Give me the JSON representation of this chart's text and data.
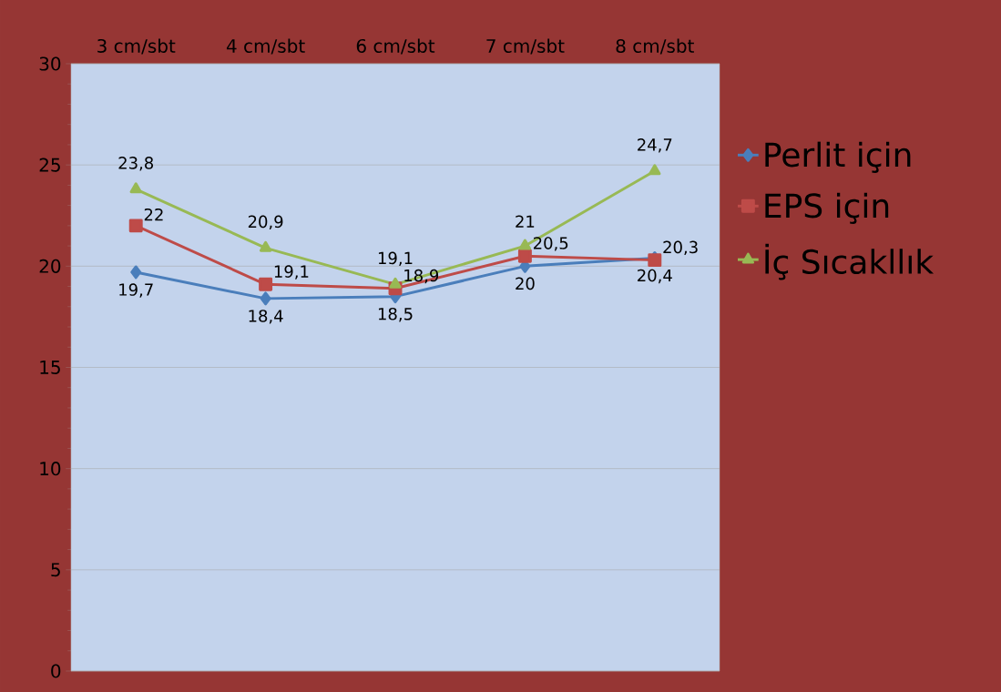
{
  "chart_data": {
    "type": "line",
    "categories": [
      "3 cm/sbt",
      "4 cm/sbt",
      "6 cm/sbt",
      "7 cm/sbt",
      "8 cm/sbt"
    ],
    "series": [
      {
        "name": "Perlit için",
        "color": "#4a7ebb",
        "marker": "diamond",
        "values": [
          19.7,
          18.4,
          18.5,
          20,
          20.4
        ],
        "value_labels": [
          "19,7",
          "18,4",
          "18,5",
          "20",
          "20,4"
        ]
      },
      {
        "name": "EPS için",
        "color": "#be4b48",
        "marker": "square",
        "values": [
          22,
          19.1,
          18.9,
          20.5,
          20.3
        ],
        "value_labels": [
          "22",
          "19,1",
          "18,9",
          "20,5",
          "20,3"
        ]
      },
      {
        "name": "İç Sıcakllık",
        "color": "#98b954",
        "marker": "triangle",
        "values": [
          23.8,
          20.9,
          19.1,
          21,
          24.7
        ],
        "value_labels": [
          "23,8",
          "20,9",
          "19,1",
          "21",
          "24,7"
        ]
      }
    ],
    "ylim": [
      0,
      30
    ],
    "yticks": [
      0,
      5,
      10,
      15,
      20,
      25,
      30
    ],
    "grid": "y",
    "legend": "right",
    "line_style": "solid"
  }
}
